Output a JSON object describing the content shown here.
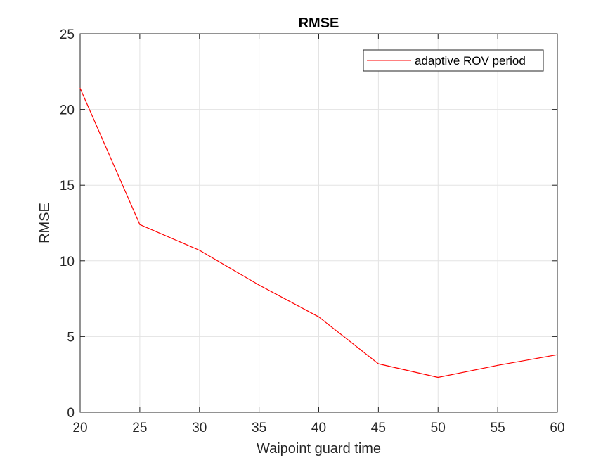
{
  "chart_data": {
    "type": "line",
    "title": "RMSE",
    "xlabel": "Waipoint guard time",
    "ylabel": "RMSE",
    "xlim": [
      20,
      60
    ],
    "ylim": [
      0,
      25
    ],
    "xticks": [
      "20",
      "25",
      "30",
      "35",
      "40",
      "45",
      "50",
      "55",
      "60"
    ],
    "yticks": [
      "0",
      "5",
      "10",
      "15",
      "20",
      "25"
    ],
    "grid": true,
    "legend_position": "top-right",
    "series": [
      {
        "name": "adaptive ROV period",
        "color": "#ff0000",
        "x": [
          20,
          25,
          30,
          35,
          40,
          45,
          50,
          55,
          60
        ],
        "y": [
          21.4,
          12.4,
          10.7,
          8.4,
          6.3,
          3.2,
          2.3,
          3.1,
          3.8
        ]
      }
    ]
  }
}
